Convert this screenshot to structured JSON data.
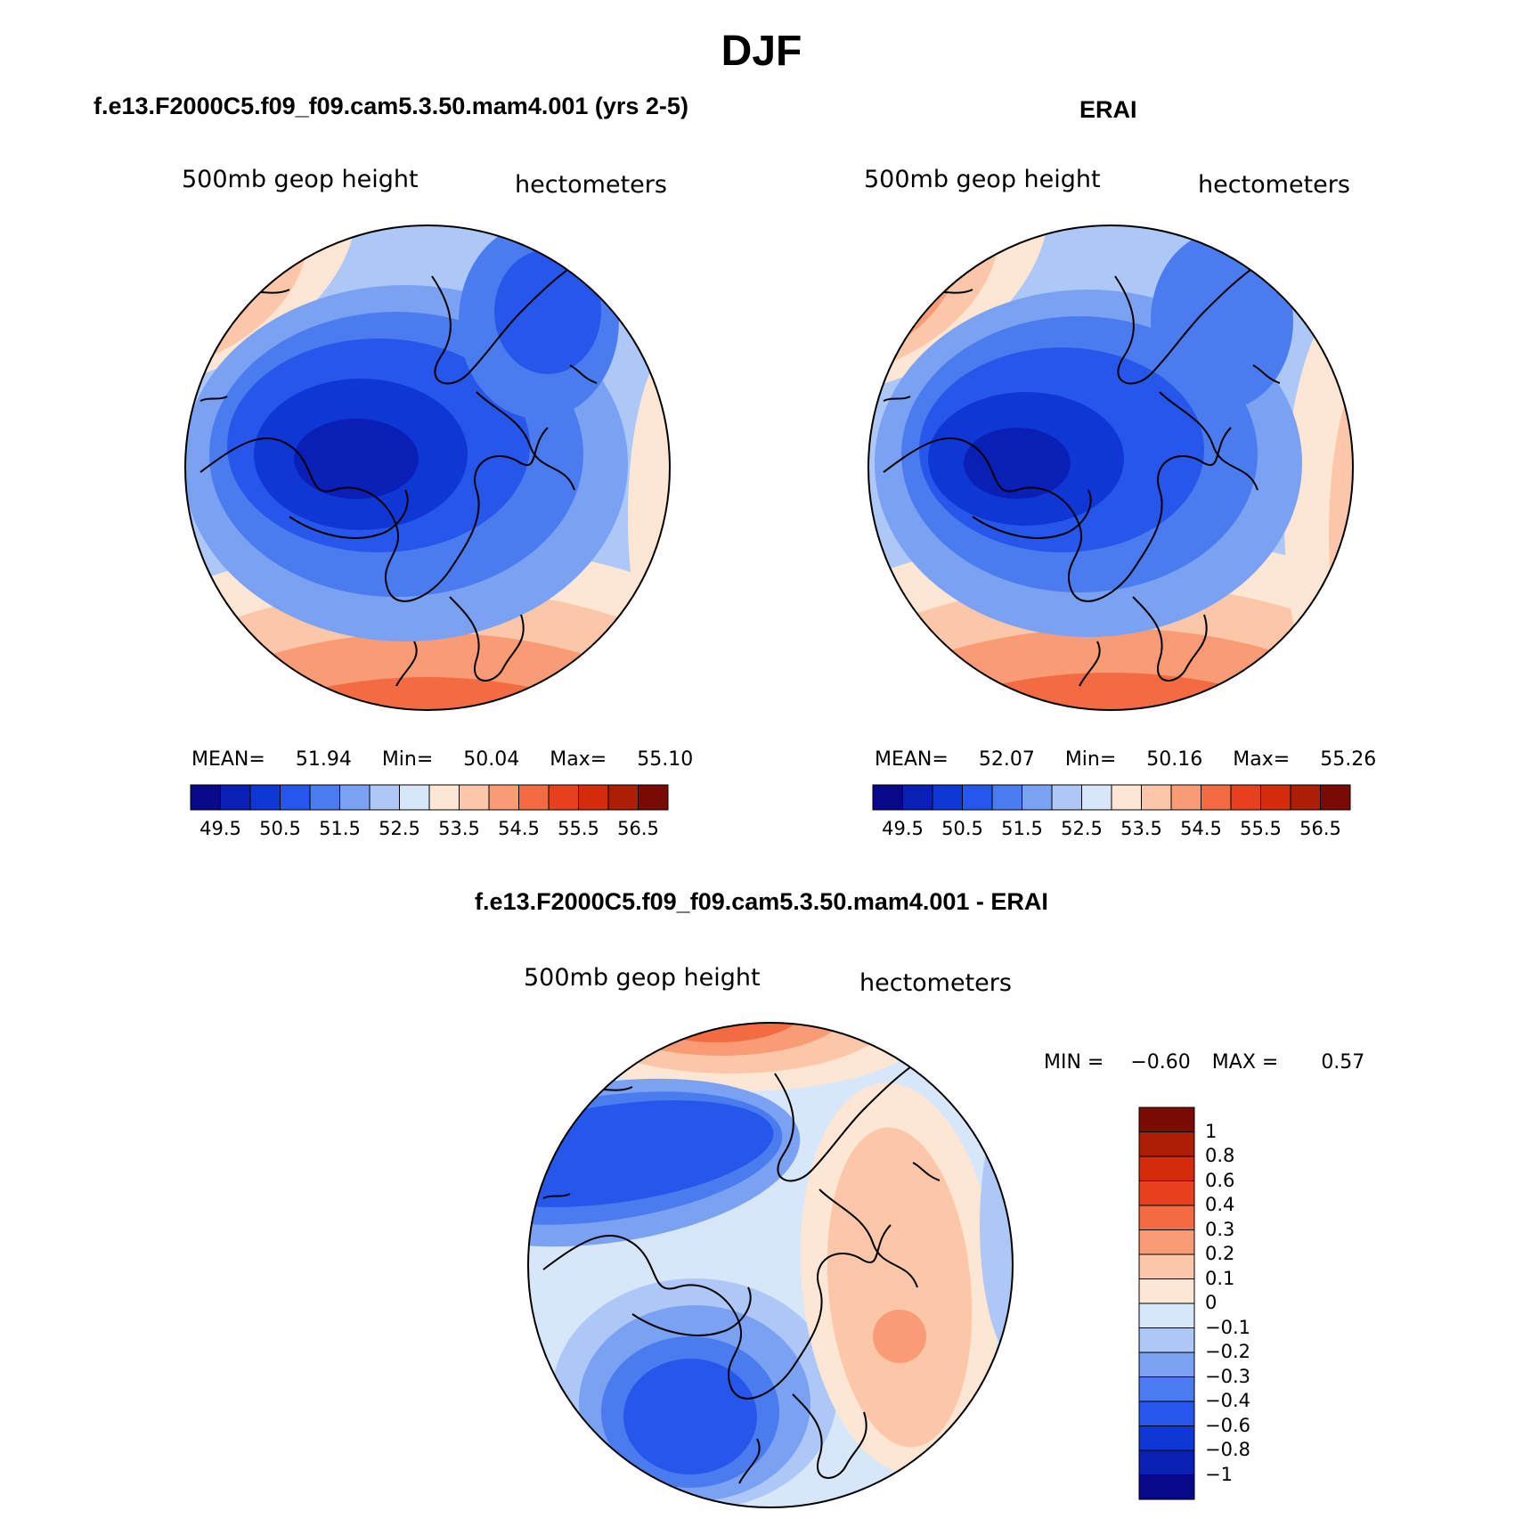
{
  "figure": {
    "season": "DJF"
  },
  "panels": [
    {
      "title": "f.e13.F2000C5.f09_f09.cam5.3.50.mam4.001 (yrs 2-5)",
      "variable": "500mb geop height",
      "units": "hectometers",
      "stats": {
        "mean_label": "MEAN=",
        "mean": "51.94",
        "min_label": "Min=",
        "min": "50.04",
        "max_label": "Max=",
        "max": "55.10"
      }
    },
    {
      "title": "ERAI",
      "variable": "500mb geop height",
      "units": "hectometers",
      "stats": {
        "mean_label": "MEAN=",
        "mean": "52.07",
        "min_label": "Min=",
        "min": "50.16",
        "max_label": "Max=",
        "max": "55.26"
      }
    },
    {
      "title": "f.e13.F2000C5.f09_f09.cam5.3.50.mam4.001 - ERAI",
      "variable": "500mb geop height",
      "units": "hectometers",
      "stats": {
        "min_label": "MIN =",
        "min": "−0.60",
        "max_label": "MAX =",
        "max": "0.57"
      }
    }
  ],
  "colorbar_height": {
    "colors": [
      "#08088a",
      "#0a1fb5",
      "#0f37d6",
      "#2757ea",
      "#4a7cf0",
      "#7aa1f2",
      "#adc7f6",
      "#d8e6fa",
      "#fde7d4",
      "#fcc7a8",
      "#f99b75",
      "#f26b42",
      "#e8401c",
      "#d42b0c",
      "#ad1e06",
      "#7a0b04"
    ],
    "tick_labels": [
      "49.5",
      "50.5",
      "51.5",
      "52.5",
      "53.5",
      "54.5",
      "55.5",
      "56.5"
    ]
  },
  "colorbar_diff": {
    "colors": [
      "#08088a",
      "#0a1fb5",
      "#0f37d6",
      "#2757ea",
      "#4a7cf0",
      "#7aa1f2",
      "#adc7f6",
      "#d8e6fa",
      "#fde7d4",
      "#fcc7a8",
      "#f99b75",
      "#f26b42",
      "#e8401c",
      "#d42b0c",
      "#ad1e06",
      "#7a0b04"
    ],
    "tick_labels": [
      "1",
      "0.8",
      "0.6",
      "0.4",
      "0.3",
      "0.2",
      "0.1",
      "0",
      "−0.1",
      "−0.2",
      "−0.3",
      "−0.4",
      "−0.6",
      "−0.8",
      "−1"
    ]
  }
}
